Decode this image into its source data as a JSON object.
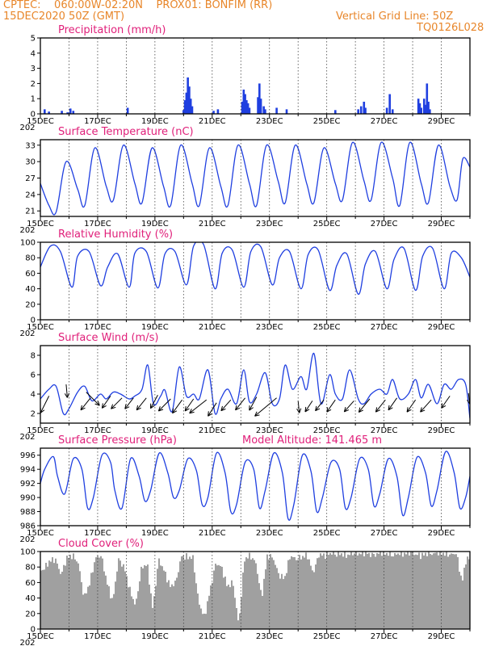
{
  "header": {
    "line1": "CPTEC:    060:00W-02:20N    PROX01: BONFIM (RR)",
    "line2_left": "15DEC2020 50Z (GMT)",
    "line2_right": "Vertical Grid Line: 50Z",
    "line3_right": "TQ0126L028"
  },
  "colors": {
    "header": "#e8862a",
    "title": "#e0207a",
    "series": "#1f3fe0",
    "cloud": "#a0a0a0"
  },
  "x_axis": {
    "labels": [
      "15DEC",
      "17DEC",
      "19DEC",
      "21DEC",
      "23DEC",
      "25DEC",
      "27DEC",
      "29DEC"
    ],
    "year_fragment": "202"
  },
  "chart_data": [
    {
      "id": "precip",
      "type": "bar",
      "title": "Precipitation (mm/h)",
      "ylim": [
        0,
        5
      ],
      "yticks": [
        0,
        1,
        2,
        3,
        4,
        5
      ],
      "xlim": [
        0,
        15
      ],
      "x_unit": "days since 15DEC",
      "bars": [
        [
          0.15,
          0.3
        ],
        [
          0.3,
          0.15
        ],
        [
          0.75,
          0.2
        ],
        [
          0.95,
          0.1
        ],
        [
          1.05,
          0.35
        ],
        [
          1.15,
          0.2
        ],
        [
          3.05,
          0.4
        ],
        [
          5.0,
          0.25
        ],
        [
          5.05,
          0.9
        ],
        [
          5.1,
          1.4
        ],
        [
          5.15,
          2.4
        ],
        [
          5.2,
          1.8
        ],
        [
          5.25,
          1.0
        ],
        [
          5.3,
          0.5
        ],
        [
          6.05,
          0.2
        ],
        [
          6.2,
          0.3
        ],
        [
          7.05,
          0.8
        ],
        [
          7.1,
          1.6
        ],
        [
          7.15,
          1.3
        ],
        [
          7.2,
          0.9
        ],
        [
          7.25,
          0.7
        ],
        [
          7.3,
          0.4
        ],
        [
          7.6,
          1.1
        ],
        [
          7.65,
          2.0
        ],
        [
          7.7,
          1.0
        ],
        [
          7.8,
          0.5
        ],
        [
          7.85,
          0.3
        ],
        [
          8.25,
          0.4
        ],
        [
          8.6,
          0.3
        ],
        [
          10.3,
          0.25
        ],
        [
          11.1,
          0.3
        ],
        [
          11.2,
          0.5
        ],
        [
          11.3,
          0.8
        ],
        [
          11.35,
          0.4
        ],
        [
          12.1,
          0.4
        ],
        [
          12.2,
          1.3
        ],
        [
          12.3,
          0.3
        ],
        [
          13.2,
          1.0
        ],
        [
          13.25,
          0.7
        ],
        [
          13.3,
          0.4
        ],
        [
          13.4,
          1.0
        ],
        [
          13.45,
          0.6
        ],
        [
          13.5,
          2.0
        ],
        [
          13.55,
          0.8
        ],
        [
          13.6,
          0.3
        ]
      ]
    },
    {
      "id": "temp",
      "type": "line",
      "title": "Surface Temperature (nC)",
      "ylim": [
        20,
        34
      ],
      "yticks": [
        21,
        24,
        27,
        30,
        33
      ],
      "xlim": [
        0,
        15
      ],
      "x": [
        0,
        0.3,
        0.55,
        0.9,
        1.3,
        1.55,
        1.9,
        2.3,
        2.55,
        2.9,
        3.3,
        3.55,
        3.9,
        4.3,
        4.55,
        4.9,
        5.3,
        5.55,
        5.9,
        6.3,
        6.55,
        6.9,
        7.3,
        7.55,
        7.9,
        8.3,
        8.55,
        8.9,
        9.3,
        9.55,
        9.9,
        10.3,
        10.55,
        10.9,
        11.3,
        11.55,
        11.9,
        12.3,
        12.55,
        12.9,
        13.3,
        13.55,
        13.9,
        14.3,
        14.55,
        14.75,
        15
      ],
      "y": [
        26,
        22,
        20.8,
        30,
        25,
        22,
        32.5,
        25.5,
        23,
        33,
        26,
        22.5,
        32.5,
        25.5,
        22,
        33,
        26,
        22,
        32.5,
        25.5,
        22,
        33,
        26,
        22,
        33,
        26.5,
        22.5,
        33,
        26,
        22.5,
        32.5,
        26,
        23,
        33.5,
        26.5,
        23,
        33.5,
        27,
        22,
        33.5,
        26,
        22.5,
        33,
        25.5,
        23,
        30.5,
        29
      ]
    },
    {
      "id": "rh",
      "type": "line",
      "title": "Relative Humidity (%)",
      "ylim": [
        0,
        100
      ],
      "yticks": [
        0,
        20,
        40,
        60,
        80,
        100
      ],
      "xlim": [
        0,
        15
      ],
      "x": [
        0,
        0.35,
        0.7,
        1.1,
        1.3,
        1.7,
        2.1,
        2.35,
        2.7,
        3.1,
        3.3,
        3.7,
        4.1,
        4.35,
        4.7,
        5.1,
        5.35,
        5.7,
        6.1,
        6.35,
        6.7,
        7.1,
        7.35,
        7.7,
        8.1,
        8.35,
        8.7,
        9.1,
        9.35,
        9.7,
        10.1,
        10.35,
        10.7,
        11.1,
        11.35,
        11.7,
        12.1,
        12.35,
        12.7,
        13.1,
        13.35,
        13.7,
        14.1,
        14.35,
        14.7,
        15
      ],
      "y": [
        68,
        95,
        88,
        42,
        82,
        88,
        44,
        68,
        85,
        42,
        86,
        88,
        41,
        85,
        88,
        45,
        95,
        97,
        40,
        86,
        90,
        42,
        88,
        94,
        45,
        80,
        88,
        40,
        84,
        90,
        38,
        70,
        85,
        33,
        72,
        88,
        40,
        78,
        92,
        38,
        82,
        92,
        40,
        86,
        80,
        55
      ]
    },
    {
      "id": "wind",
      "type": "line",
      "title": "Surface Wind (m/s)",
      "ylim": [
        1,
        9
      ],
      "yticks": [
        2,
        4,
        6,
        8
      ],
      "xlim": [
        0,
        15
      ],
      "x": [
        0,
        0.3,
        0.55,
        0.8,
        1.0,
        1.3,
        1.55,
        1.8,
        2.1,
        2.3,
        2.55,
        2.8,
        3.1,
        3.3,
        3.55,
        3.75,
        3.95,
        4.2,
        4.35,
        4.6,
        4.85,
        5.1,
        5.35,
        5.55,
        5.85,
        6.1,
        6.3,
        6.55,
        6.85,
        7.1,
        7.3,
        7.55,
        7.85,
        8.1,
        8.35,
        8.55,
        8.8,
        9.1,
        9.3,
        9.55,
        9.8,
        10.1,
        10.3,
        10.55,
        10.8,
        11.1,
        11.3,
        11.55,
        11.85,
        12.1,
        12.3,
        12.55,
        12.85,
        13.1,
        13.3,
        13.55,
        13.85,
        14.1,
        14.35,
        14.6,
        14.85,
        15
      ],
      "y": [
        3.5,
        4.5,
        4.8,
        2.0,
        2.5,
        4.2,
        4.8,
        3.3,
        4.0,
        3.5,
        4.2,
        4.0,
        3.5,
        3.8,
        4.5,
        7.0,
        3.0,
        3.8,
        4.4,
        2.2,
        6.8,
        3.8,
        4.0,
        3.5,
        6.5,
        2.0,
        3.5,
        4.5,
        3.0,
        6.5,
        3.2,
        4.0,
        6.2,
        3.0,
        3.5,
        7.0,
        4.5,
        5.8,
        4.5,
        8.2,
        3.0,
        6.0,
        4.0,
        3.5,
        6.5,
        3.5,
        3.0,
        4.0,
        4.5,
        4.0,
        5.5,
        3.5,
        4.0,
        5.5,
        3.6,
        5.0,
        3.0,
        5.0,
        4.5,
        5.5,
        5.0,
        1.5
      ]
    },
    {
      "id": "pressure",
      "type": "line",
      "title": "Surface Pressure (hPa)",
      "annotation": "Model Altitude: 141.465 m",
      "ylim": [
        986,
        997
      ],
      "yticks": [
        986,
        988,
        990,
        992,
        994,
        996
      ],
      "xlim": [
        0,
        15
      ],
      "x": [
        0,
        0.15,
        0.45,
        0.6,
        0.85,
        1.15,
        1.45,
        1.65,
        1.85,
        2.15,
        2.45,
        2.6,
        2.85,
        3.15,
        3.45,
        3.65,
        3.85,
        4.15,
        4.45,
        4.65,
        4.85,
        5.15,
        5.45,
        5.65,
        5.85,
        6.15,
        6.45,
        6.65,
        6.85,
        7.15,
        7.45,
        7.65,
        7.85,
        8.15,
        8.45,
        8.65,
        8.85,
        9.15,
        9.45,
        9.65,
        9.85,
        10.15,
        10.45,
        10.65,
        10.85,
        11.15,
        11.45,
        11.65,
        11.85,
        12.15,
        12.45,
        12.65,
        12.85,
        13.15,
        13.45,
        13.65,
        13.85,
        14.15,
        14.45,
        14.65,
        14.85,
        15
      ],
      "y": [
        992,
        994,
        995.8,
        993,
        990.5,
        995.5,
        994,
        988.5,
        990,
        996,
        995,
        991,
        988.5,
        995.5,
        993,
        989.5,
        991,
        996.3,
        993.5,
        990,
        991,
        995.5,
        993.8,
        989,
        990,
        996.3,
        993.5,
        988,
        989,
        995,
        994,
        988.5,
        991,
        996.3,
        993.5,
        987,
        989,
        996,
        993.7,
        988,
        990,
        995,
        994,
        988.5,
        990,
        995.5,
        994,
        988.8,
        990.5,
        995.5,
        993,
        987.5,
        990,
        995.7,
        993.5,
        988.8,
        991,
        996.5,
        993.5,
        988.5,
        990,
        993
      ]
    },
    {
      "id": "cloud",
      "type": "area",
      "title": "Cloud Cover (%)",
      "ylim": [
        0,
        100
      ],
      "yticks": [
        0,
        20,
        40,
        60,
        80,
        100
      ],
      "xlim": [
        0,
        15
      ],
      "x": [
        0,
        0.15,
        0.3,
        0.5,
        0.7,
        0.9,
        1.1,
        1.3,
        1.5,
        1.7,
        1.9,
        2.1,
        2.3,
        2.5,
        2.7,
        2.9,
        3.1,
        3.3,
        3.5,
        3.7,
        3.9,
        4.1,
        4.3,
        4.5,
        4.7,
        4.9,
        5.1,
        5.3,
        5.5,
        5.7,
        5.9,
        6.1,
        6.3,
        6.5,
        6.7,
        6.9,
        7.1,
        7.3,
        7.5,
        7.7,
        7.9,
        8.1,
        8.3,
        8.5,
        8.7,
        8.9,
        9.1,
        9.3,
        9.5,
        9.7,
        9.9,
        10.1,
        10.3,
        10.5,
        10.7,
        10.9,
        11.1,
        11.3,
        11.5,
        11.7,
        11.9,
        12.1,
        12.3,
        12.5,
        12.7,
        12.9,
        13.1,
        13.3,
        13.5,
        13.7,
        13.9,
        14.1,
        14.3,
        14.5,
        14.7,
        14.85,
        15
      ],
      "y": [
        75,
        80,
        88,
        90,
        70,
        92,
        95,
        85,
        40,
        60,
        92,
        95,
        60,
        35,
        90,
        80,
        50,
        30,
        78,
        85,
        25,
        90,
        75,
        55,
        60,
        94,
        93,
        92,
        35,
        15,
        50,
        85,
        80,
        55,
        60,
        5,
        90,
        95,
        85,
        40,
        95,
        92,
        70,
        65,
        95,
        90,
        93,
        95,
        72,
        96,
        95,
        98,
        96,
        97,
        95,
        98,
        97,
        99,
        96,
        96,
        99,
        97,
        95,
        98,
        97,
        99,
        96,
        95,
        98,
        97,
        99,
        97,
        96,
        98,
        60,
        92,
        88
      ]
    }
  ],
  "wind_arrows": {
    "unit": "m/s",
    "vectors": [
      [
        0.3,
        3.8,
        -0.35,
        -0.7
      ],
      [
        0.9,
        5.0,
        0.05,
        -0.55
      ],
      [
        1.6,
        4.2,
        0.55,
        -0.55
      ],
      [
        1.75,
        3.6,
        -0.4,
        -0.5
      ],
      [
        2.45,
        3.8,
        -0.35,
        -0.5
      ],
      [
        2.85,
        3.6,
        -0.45,
        -0.45
      ],
      [
        3.25,
        3.6,
        -0.35,
        -0.45
      ],
      [
        3.7,
        3.6,
        -0.4,
        -0.5
      ],
      [
        4.1,
        3.9,
        -0.3,
        -0.55
      ],
      [
        4.55,
        3.5,
        -0.5,
        -0.5
      ],
      [
        4.95,
        3.4,
        -0.4,
        -0.55
      ],
      [
        5.35,
        3.5,
        -0.35,
        -0.5
      ],
      [
        5.8,
        3.4,
        -0.7,
        -0.55
      ],
      [
        6.15,
        3.1,
        -0.35,
        -0.55
      ],
      [
        6.65,
        3.4,
        -0.4,
        -0.45
      ],
      [
        7.15,
        3.6,
        -0.4,
        -0.5
      ],
      [
        7.55,
        3.7,
        -0.3,
        -0.55
      ],
      [
        8.25,
        3.6,
        -0.9,
        -0.75
      ],
      [
        9.0,
        3.3,
        0.05,
        -0.5
      ],
      [
        9.5,
        3.3,
        -0.3,
        -0.45
      ],
      [
        9.9,
        3.4,
        -0.35,
        -0.45
      ],
      [
        10.3,
        3.4,
        -0.35,
        -0.5
      ],
      [
        10.95,
        3.3,
        -0.4,
        -0.45
      ],
      [
        11.5,
        3.5,
        -0.45,
        -0.55
      ],
      [
        12.05,
        3.4,
        -0.4,
        -0.5
      ],
      [
        12.45,
        3.6,
        -0.35,
        -0.5
      ],
      [
        13.1,
        3.4,
        -0.35,
        -0.5
      ],
      [
        13.65,
        3.4,
        -0.45,
        -0.5
      ],
      [
        14.3,
        3.8,
        -0.35,
        -0.5
      ],
      [
        14.95,
        4.1,
        0.05,
        -0.45
      ]
    ]
  }
}
